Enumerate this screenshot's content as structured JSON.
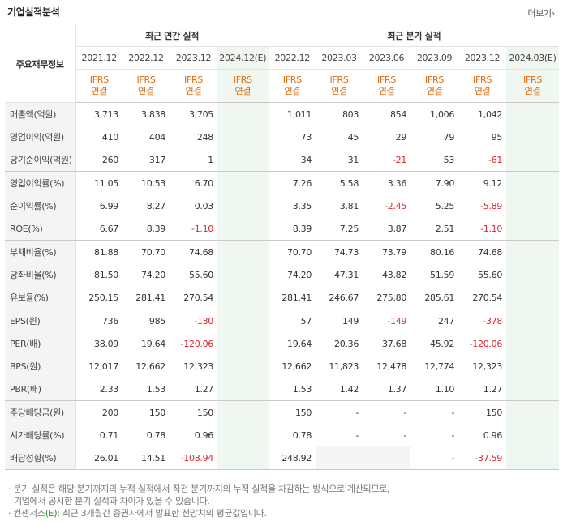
{
  "header": {
    "title": "기업실적분석",
    "more_label": "더보기",
    "more_arrow": "›"
  },
  "table": {
    "row_header": "주요재무정보",
    "group_annual": "최근 연간 실적",
    "group_quarter": "최근 분기 실적",
    "annual_periods": [
      {
        "label": "2021.12",
        "basis": "IFRS",
        "basis2": "연결"
      },
      {
        "label": "2022.12",
        "basis": "IFRS",
        "basis2": "연결"
      },
      {
        "label": "2023.12",
        "basis": "IFRS",
        "basis2": "연결"
      },
      {
        "label": "2024.12",
        "est": "(E)",
        "basis": "IFRS",
        "basis2": "연결"
      }
    ],
    "quarter_periods": [
      {
        "label": "2022.12",
        "basis": "IFRS",
        "basis2": "연결"
      },
      {
        "label": "2023.03",
        "basis": "IFRS",
        "basis2": "연결"
      },
      {
        "label": "2023.06",
        "basis": "IFRS",
        "basis2": "연결"
      },
      {
        "label": "2023.09",
        "basis": "IFRS",
        "basis2": "연결"
      },
      {
        "label": "2023.12",
        "basis": "IFRS",
        "basis2": "연결"
      },
      {
        "label": "2024.03",
        "est": "(E)",
        "basis": "IFRS",
        "basis2": "연결"
      }
    ],
    "rows": [
      {
        "label": "매출액(억원)",
        "values": [
          "3,713",
          "3,838",
          "3,705",
          "",
          "1,011",
          "803",
          "854",
          "1,006",
          "1,042",
          ""
        ]
      },
      {
        "label": "영업이익(억원)",
        "values": [
          "410",
          "404",
          "248",
          "",
          "73",
          "45",
          "29",
          "79",
          "95",
          ""
        ]
      },
      {
        "label": "당기순이익(억원)",
        "values": [
          "260",
          "317",
          "1",
          "",
          "34",
          "31",
          "-21",
          "53",
          "-61",
          ""
        ]
      },
      {
        "label": "영업이익률(%)",
        "values": [
          "11.05",
          "10.53",
          "6.70",
          "",
          "7.26",
          "5.58",
          "3.36",
          "7.90",
          "9.12",
          ""
        ]
      },
      {
        "label": "순이익률(%)",
        "values": [
          "6.99",
          "8.27",
          "0.03",
          "",
          "3.35",
          "3.81",
          "-2.45",
          "5.25",
          "-5.89",
          ""
        ]
      },
      {
        "label": "ROE(%)",
        "values": [
          "6.67",
          "8.39",
          "-1.10",
          "",
          "8.39",
          "7.25",
          "3.87",
          "2.51",
          "-1.10",
          ""
        ]
      },
      {
        "label": "부채비율(%)",
        "values": [
          "81.88",
          "70.70",
          "74.68",
          "",
          "70.70",
          "74.73",
          "73.79",
          "80.16",
          "74.68",
          ""
        ]
      },
      {
        "label": "당좌비율(%)",
        "values": [
          "81.50",
          "74.20",
          "55.60",
          "",
          "74.20",
          "47.31",
          "43.82",
          "51.59",
          "55.60",
          ""
        ]
      },
      {
        "label": "유보율(%)",
        "values": [
          "250.15",
          "281.41",
          "270.54",
          "",
          "281.41",
          "246.67",
          "275.80",
          "285.61",
          "270.54",
          ""
        ]
      },
      {
        "label": "EPS(원)",
        "values": [
          "736",
          "985",
          "-130",
          "",
          "57",
          "149",
          "-149",
          "247",
          "-378",
          ""
        ]
      },
      {
        "label": "PER(배)",
        "values": [
          "38.09",
          "19.64",
          "-120.06",
          "",
          "19.64",
          "20.36",
          "37.68",
          "45.92",
          "-120.06",
          ""
        ]
      },
      {
        "label": "BPS(원)",
        "values": [
          "12,017",
          "12,662",
          "12,323",
          "",
          "12,662",
          "11,823",
          "12,478",
          "12,774",
          "12,323",
          ""
        ]
      },
      {
        "label": "PBR(배)",
        "values": [
          "2.33",
          "1.53",
          "1.27",
          "",
          "1.53",
          "1.42",
          "1.37",
          "1.10",
          "1.27",
          ""
        ]
      },
      {
        "label": "주당배당금(원)",
        "values": [
          "200",
          "150",
          "150",
          "",
          "150",
          "-",
          "-",
          "-",
          "150",
          ""
        ]
      },
      {
        "label": "시가배당률(%)",
        "values": [
          "0.71",
          "0.78",
          "0.96",
          "",
          "0.78",
          "-",
          "-",
          "-",
          "0.96",
          ""
        ]
      },
      {
        "label": "배당성향(%)",
        "values": [
          "26.01",
          "14.51",
          "-108.94",
          "",
          "248.92",
          "",
          "",
          "-",
          "-37.59",
          ""
        ]
      }
    ]
  },
  "notes": {
    "line1": "· 분기 실적은 해당 분기까지의 누적 실적에서 직전 분기까지의 누적 실적을 차감하는 방식으로 계산되므로,",
    "line2": "기업에서 공시한 분기 실적과 차이가 있을 수 있습니다.",
    "line3_a": "· 컨센서스",
    "line3_e": "(E)",
    "line3_b": ": 최근 3개월간 증권사에서 발표한 전망치의 평균값입니다."
  },
  "colors": {
    "basis": "#e26a0a",
    "negative": "#e0242f",
    "estimate_bg": "#f0f7f0",
    "estimate_text": "#2a8c2a"
  }
}
